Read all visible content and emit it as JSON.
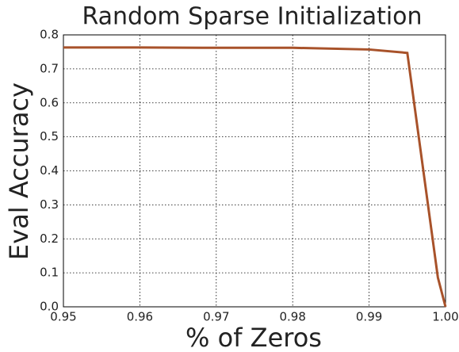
{
  "chart_data": {
    "type": "line",
    "title": "Random Sparse Initialization",
    "x_label": "% of Zeros",
    "y_label": "Eval Accuracy",
    "x": [
      0.95,
      0.96,
      0.97,
      0.98,
      0.99,
      0.995,
      0.999,
      1.0
    ],
    "series": [
      {
        "name": "Eval Accuracy",
        "color": "#a8522a",
        "values": [
          0.763,
          0.763,
          0.762,
          0.762,
          0.757,
          0.747,
          0.086,
          0.0
        ]
      }
    ],
    "xlim": [
      0.95,
      1.0
    ],
    "ylim": [
      0,
      0.8
    ],
    "xticks": [
      0.95,
      0.96,
      0.97,
      0.98,
      0.99,
      {
        "value": 1.0,
        "label": "1.00"
      }
    ],
    "yticks": [
      {
        "value": 0,
        "label": "0.0"
      },
      0.1,
      0.2,
      0.3,
      0.4,
      0.5,
      0.6,
      0.7,
      0.8
    ],
    "grid": true
  }
}
